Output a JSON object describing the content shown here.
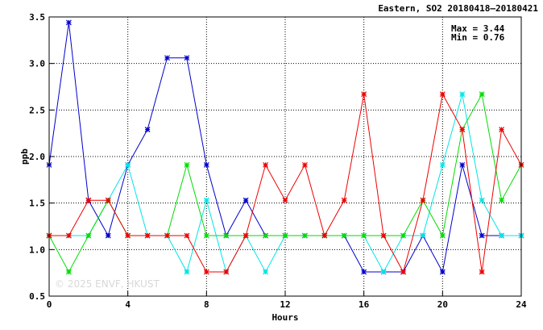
{
  "chart_data": {
    "type": "line",
    "title": "Eastern, SO2 20180418–20180421",
    "xlabel": "Hours",
    "ylabel": "ppb",
    "xlim": [
      0,
      24
    ],
    "ylim": [
      0.5,
      3.5
    ],
    "xticks": [
      0,
      4,
      8,
      12,
      16,
      20,
      24
    ],
    "yticks": [
      0.5,
      1.0,
      1.5,
      2.0,
      2.5,
      3.0,
      3.5
    ],
    "xtick_labels": [
      "0",
      "4",
      "8",
      "12",
      "16",
      "20",
      "24"
    ],
    "ytick_labels": [
      "0.5",
      "1.0",
      "1.5",
      "2.0",
      "2.5",
      "3.0",
      "3.5"
    ],
    "grid": true,
    "grid_style": "dotted",
    "stats": {
      "max_label": "Max = 3.44",
      "min_label": "Min = 0.76"
    },
    "watermark": "© 2025  ENVF, HKUST",
    "marker": "asterisk",
    "series": [
      {
        "color": "#0000cc",
        "x": [
          0,
          1,
          2,
          3,
          4,
          5,
          6,
          7,
          8,
          9,
          10,
          11,
          12,
          13,
          14,
          15,
          16,
          17,
          18,
          19,
          20,
          21,
          22,
          23,
          24
        ],
        "values": [
          1.91,
          3.44,
          1.53,
          1.15,
          1.91,
          2.29,
          3.06,
          3.06,
          1.91,
          1.15,
          1.53,
          1.15,
          1.15,
          1.15,
          1.15,
          1.15,
          0.76,
          0.76,
          0.76,
          1.15,
          0.76,
          1.91,
          1.15,
          1.15,
          1.15
        ]
      },
      {
        "color": "#00e5e5",
        "x": [
          0,
          1,
          2,
          3,
          4,
          5,
          6,
          7,
          8,
          9,
          10,
          11,
          12,
          13,
          14,
          15,
          16,
          17,
          18,
          19,
          20,
          21,
          22,
          23,
          24
        ],
        "values": [
          1.15,
          1.15,
          1.15,
          1.53,
          1.91,
          1.15,
          1.15,
          0.76,
          1.53,
          0.76,
          1.15,
          0.76,
          1.15,
          1.15,
          1.15,
          1.15,
          1.15,
          0.76,
          1.15,
          1.15,
          1.91,
          2.67,
          1.53,
          1.15,
          1.15
        ]
      },
      {
        "color": "#00dd00",
        "x": [
          0,
          1,
          2,
          3,
          4,
          5,
          6,
          7,
          8,
          9,
          10,
          11,
          12,
          13,
          14,
          15,
          16,
          17,
          18,
          19,
          20,
          21,
          22,
          23,
          24
        ],
        "values": [
          1.15,
          0.76,
          1.15,
          1.53,
          1.15,
          1.15,
          1.15,
          1.91,
          1.15,
          1.15,
          1.15,
          1.15,
          1.15,
          1.15,
          1.15,
          1.15,
          1.15,
          1.15,
          1.15,
          1.53,
          1.15,
          2.29,
          2.67,
          1.53,
          1.91
        ]
      },
      {
        "color": "#ee0000",
        "x": [
          0,
          1,
          2,
          3,
          4,
          5,
          6,
          7,
          8,
          9,
          10,
          11,
          12,
          13,
          14,
          15,
          16,
          17,
          18,
          19,
          20,
          21,
          22,
          23,
          24
        ],
        "values": [
          1.15,
          1.15,
          1.53,
          1.53,
          1.15,
          1.15,
          1.15,
          1.15,
          0.76,
          0.76,
          1.15,
          1.91,
          1.53,
          1.91,
          1.15,
          1.53,
          2.67,
          1.15,
          0.76,
          1.53,
          2.67,
          2.29,
          0.76,
          2.29,
          1.91
        ]
      }
    ]
  }
}
